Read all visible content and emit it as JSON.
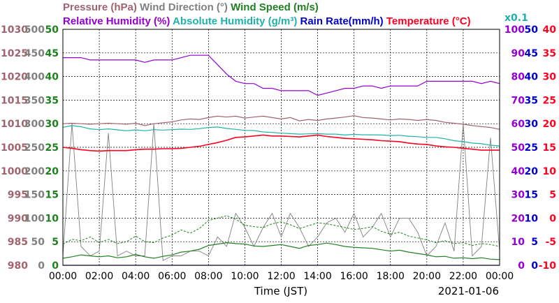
{
  "chart_data": {
    "type": "line",
    "title_row1": [
      {
        "text": "Pressure (hPa)",
        "color": "#A0646E"
      },
      {
        "text": "Wind Direction (°)",
        "color": "#808080"
      },
      {
        "text": "Wind Speed (m/s)",
        "color": "#208020"
      }
    ],
    "title_row2": [
      {
        "text": "Relative Humidity (%)",
        "color": "#9400D3"
      },
      {
        "text": "Absolute Humidity (g/m³)",
        "color": "#20B2AA"
      },
      {
        "text": "Rain Rate(mm/h)",
        "color": "#0000C8"
      },
      {
        "text": "Temperature (°C)",
        "color": "#FF0020"
      }
    ],
    "absolute_humidity_scale": "x0.1",
    "xlabel": "Time (JST)",
    "date": "2021-01-06",
    "x_ticks": [
      "00:00",
      "02:00",
      "04:00",
      "06:00",
      "08:00",
      "10:00",
      "12:00",
      "14:00",
      "16:00",
      "18:00",
      "20:00",
      "22:00",
      "00:00"
    ],
    "axes": {
      "pressure": {
        "color": "#A0646E",
        "range": [
          980,
          1030
        ],
        "ticks": [
          "980",
          "985",
          "990",
          "995",
          "1000",
          "1005",
          "1010",
          "1015",
          "1020",
          "1025",
          "1030"
        ]
      },
      "wind_direction": {
        "color": "#808080",
        "range": [
          0,
          500
        ],
        "ticks": [
          "0",
          "50",
          "100",
          "150",
          "200",
          "250",
          "300",
          "350",
          "400",
          "450",
          "500"
        ]
      },
      "wind_speed": {
        "color": "#208020",
        "range": [
          0,
          50
        ],
        "ticks": [
          "0",
          "5",
          "10",
          "15",
          "20",
          "25",
          "30",
          "35",
          "40",
          "45",
          "50"
        ]
      },
      "relative_humidity": {
        "color": "#9400D3",
        "range": [
          0,
          100
        ],
        "ticks": [
          "0",
          "10",
          "20",
          "30",
          "40",
          "50",
          "60",
          "70",
          "80",
          "90",
          "100"
        ]
      },
      "rain_rate": {
        "color": "#0000C8",
        "range": [
          0,
          50
        ],
        "ticks": [
          "0",
          "5",
          "10",
          "15",
          "20",
          "25",
          "30",
          "35",
          "40",
          "45",
          "50"
        ]
      },
      "temperature": {
        "color": "#FF0020",
        "range": [
          -10,
          40
        ],
        "ticks": [
          "-10",
          "-5",
          "0",
          "5",
          "10",
          "15",
          "20",
          "25",
          "30",
          "35",
          "40"
        ]
      }
    },
    "x_hours": [
      0,
      0.5,
      1,
      1.5,
      2,
      2.5,
      3,
      3.5,
      4,
      4.5,
      5,
      5.5,
      6,
      6.5,
      7,
      7.5,
      8,
      8.5,
      9,
      9.5,
      10,
      10.5,
      11,
      11.5,
      12,
      12.5,
      13,
      13.5,
      14,
      14.5,
      15,
      15.5,
      16,
      16.5,
      17,
      17.5,
      18,
      18.5,
      19,
      19.5,
      20,
      20.5,
      21,
      21.5,
      22,
      22.5,
      23,
      23.5,
      24
    ],
    "series": [
      {
        "name": "Pressure (hPa)",
        "axis": "pressure",
        "values": [
          1010.0,
          1010.1,
          1010.0,
          1009.9,
          1010.0,
          1010.1,
          1010.0,
          1009.9,
          1010.1,
          1009.6,
          1010.0,
          1010.2,
          1010.4,
          1010.8,
          1011.0,
          1010.9,
          1011.3,
          1011.6,
          1011.4,
          1011.6,
          1011.2,
          1011.4,
          1011.6,
          1011.3,
          1011.0,
          1011.3,
          1010.6,
          1010.9,
          1010.7,
          1011.0,
          1011.2,
          1011.4,
          1011.7,
          1011.3,
          1011.2,
          1011.0,
          1010.8,
          1011.0,
          1010.9,
          1010.7,
          1010.9,
          1010.7,
          1010.3,
          1010.1,
          1009.9,
          1009.6,
          1009.4,
          1009.2,
          1008.8
        ]
      },
      {
        "name": "Wind Direction (°)",
        "axis": "wind_direction",
        "style": "wind_direction",
        "values": [
          20,
          300,
          40,
          20,
          30,
          280,
          20,
          30,
          20,
          20,
          300,
          10,
          20,
          20,
          30,
          30,
          20,
          60,
          40,
          110,
          80,
          40,
          80,
          110,
          60,
          110,
          80,
          40,
          60,
          90,
          100,
          70,
          110,
          60,
          80,
          110,
          60,
          100,
          100,
          70,
          20,
          40,
          90,
          30,
          300,
          20,
          40,
          270,
          30
        ]
      },
      {
        "name": "Wind Speed (m/s)",
        "axis": "wind_speed",
        "style": "wind_speed",
        "values": [
          1.5,
          1.8,
          2.2,
          2.0,
          1.8,
          2.0,
          1.6,
          1.8,
          2.3,
          1.8,
          1.5,
          1.9,
          2.2,
          2.8,
          3.0,
          3.4,
          4.2,
          4.5,
          4.8,
          4.6,
          4.5,
          4.1,
          4.0,
          4.2,
          4.4,
          4.0,
          3.6,
          4.2,
          4.4,
          4.7,
          4.4,
          4.0,
          3.8,
          3.7,
          3.6,
          3.3,
          3.0,
          3.2,
          2.8,
          2.5,
          2.2,
          1.8,
          1.9,
          1.5,
          1.6,
          1.4,
          1.6,
          1.3,
          1.2
        ],
        "gust": [
          4.5,
          5.5,
          5.2,
          6.0,
          4.8,
          5.5,
          4.6,
          5.0,
          6.2,
          5.0,
          4.8,
          5.8,
          6.4,
          7.5,
          6.8,
          7.8,
          9.5,
          10.0,
          10.5,
          9.8,
          8.5,
          8.2,
          8.0,
          8.8,
          9.2,
          8.6,
          7.8,
          8.4,
          9.0,
          8.8,
          8.4,
          8.0,
          7.6,
          7.8,
          8.2,
          7.2,
          6.6,
          7.0,
          6.2,
          5.8,
          5.4,
          4.8,
          5.2,
          4.6,
          4.8,
          4.2,
          4.6,
          4.4,
          4.0
        ]
      },
      {
        "name": "Relative Humidity (%)",
        "axis": "relative_humidity",
        "values": [
          88,
          88,
          88,
          87,
          87,
          87,
          87,
          87,
          87,
          86,
          87,
          87,
          87,
          88,
          89,
          89,
          89,
          85,
          81,
          78,
          77,
          77,
          75,
          75,
          74,
          74,
          74,
          74,
          72,
          73,
          74,
          75,
          75,
          76,
          76,
          75,
          76,
          76,
          76,
          76,
          78,
          78,
          78,
          78,
          78,
          78,
          77,
          78,
          77
        ]
      },
      {
        "name": "Absolute Humidity (g/m³)",
        "axis": "relative_humidity",
        "values": [
          58.5,
          59.2,
          58.7,
          57.8,
          57.5,
          57.8,
          57.4,
          57.0,
          57.4,
          57.0,
          57.5,
          57.3,
          57.5,
          57.7,
          57.6,
          57.9,
          58.4,
          58.6,
          58.0,
          57.6,
          57.2,
          57.1,
          56.5,
          56.3,
          56.0,
          55.8,
          55.6,
          55.7,
          55.8,
          55.6,
          55.6,
          55.2,
          55.5,
          55.3,
          55.3,
          55.2,
          55.0,
          55.1,
          54.7,
          54.5,
          54.2,
          54.2,
          53.6,
          52.8,
          52.4,
          51.8,
          51.5,
          50.9,
          50.6
        ]
      },
      {
        "name": "Temperature (°C)",
        "axis": "temperature",
        "values": [
          15.0,
          14.8,
          14.5,
          14.3,
          14.2,
          14.3,
          14.3,
          14.3,
          14.5,
          14.6,
          14.6,
          14.7,
          14.7,
          14.8,
          15.0,
          15.2,
          15.6,
          16.0,
          16.5,
          17.1,
          17.2,
          17.4,
          17.6,
          17.4,
          17.4,
          17.3,
          17.2,
          17.4,
          17.6,
          17.3,
          17.1,
          16.9,
          16.8,
          16.7,
          16.6,
          16.4,
          16.3,
          16.2,
          15.9,
          15.7,
          15.6,
          15.3,
          15.1,
          15.0,
          14.8,
          14.6,
          14.4,
          14.4,
          14.4
        ]
      },
      {
        "name": "Rain Rate(mm/h)",
        "axis": "rain_rate",
        "values": [
          0,
          0,
          0,
          0,
          0,
          0,
          0,
          0,
          0,
          0,
          0,
          0,
          0,
          0,
          0,
          0,
          0,
          0,
          0,
          0,
          0,
          0,
          0,
          0,
          0,
          0,
          0,
          0,
          0,
          0,
          0,
          0,
          0,
          0,
          0,
          0,
          0,
          0,
          0,
          0,
          0,
          0,
          0,
          0,
          0,
          0,
          0,
          0,
          0
        ]
      }
    ]
  }
}
